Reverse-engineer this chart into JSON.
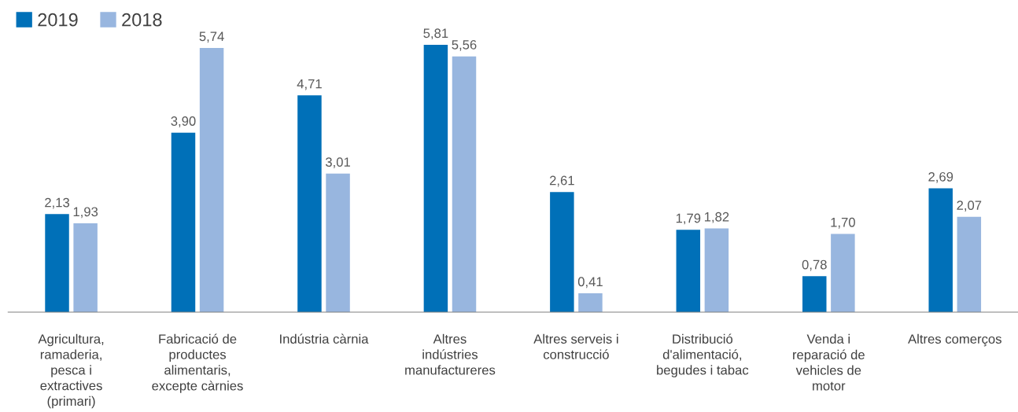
{
  "chart_data": {
    "type": "bar",
    "categories": [
      "Agricultura,\nramaderia,\npesca i\nextractives\n(primari)",
      "Fabricació de\nproductes\nalimentaris,\nexcepte càrnies",
      "Indústria càrnia",
      "Altres\nindústries\nmanufactureres",
      "Altres serveis i\nconstrucció",
      "Distribució\nd'alimentació,\nbegudes i tabac",
      "Venda i\nreparació de\nvehicles de\nmotor",
      "Altres comerços"
    ],
    "series": [
      {
        "name": "2019",
        "color": "#0070b8",
        "values": [
          2.13,
          3.9,
          4.71,
          5.81,
          2.61,
          1.79,
          0.78,
          2.69
        ],
        "value_labels": [
          "2,13",
          "3,90",
          "4,71",
          "5,81",
          "2,61",
          "1,79",
          "0,78",
          "2,69"
        ]
      },
      {
        "name": "2018",
        "color": "#98b6df",
        "values": [
          1.93,
          5.74,
          3.01,
          5.56,
          0.41,
          1.82,
          1.7,
          2.07
        ],
        "value_labels": [
          "1,93",
          "5,74",
          "3,01",
          "5,56",
          "0,41",
          "1,82",
          "1,70",
          "2,07"
        ]
      }
    ],
    "legend": "top left",
    "grid": false
  }
}
